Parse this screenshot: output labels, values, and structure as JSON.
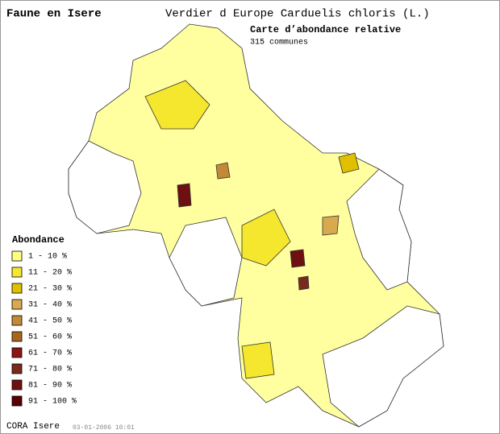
{
  "header": {
    "title": "Faune en Isere",
    "species": "Verdier d Europe  Carduelis chloris (L.)",
    "map_title": "Carte d’abondance relative",
    "subtitle": "315 communes"
  },
  "legend": {
    "title": "Abondance",
    "items": [
      {
        "label": "1 - 10 %",
        "color": "#ffff80"
      },
      {
        "label": "11 - 20 %",
        "color": "#f5e62e"
      },
      {
        "label": "21 - 30 %",
        "color": "#e0c000"
      },
      {
        "label": "31 - 40 %",
        "color": "#d9a94f"
      },
      {
        "label": "41 - 50 %",
        "color": "#c28a38"
      },
      {
        "label": "51 - 60 %",
        "color": "#a8661c"
      },
      {
        "label": "61 - 70 %",
        "color": "#8c1515"
      },
      {
        "label": "71 - 80 %",
        "color": "#7a2a1a"
      },
      {
        "label": "81 - 90 %",
        "color": "#6e1010"
      },
      {
        "label": "91 - 100 %",
        "color": "#5a0000"
      }
    ]
  },
  "footer": {
    "source": "CORA Isere",
    "date": "03-01-2006 10:01"
  }
}
